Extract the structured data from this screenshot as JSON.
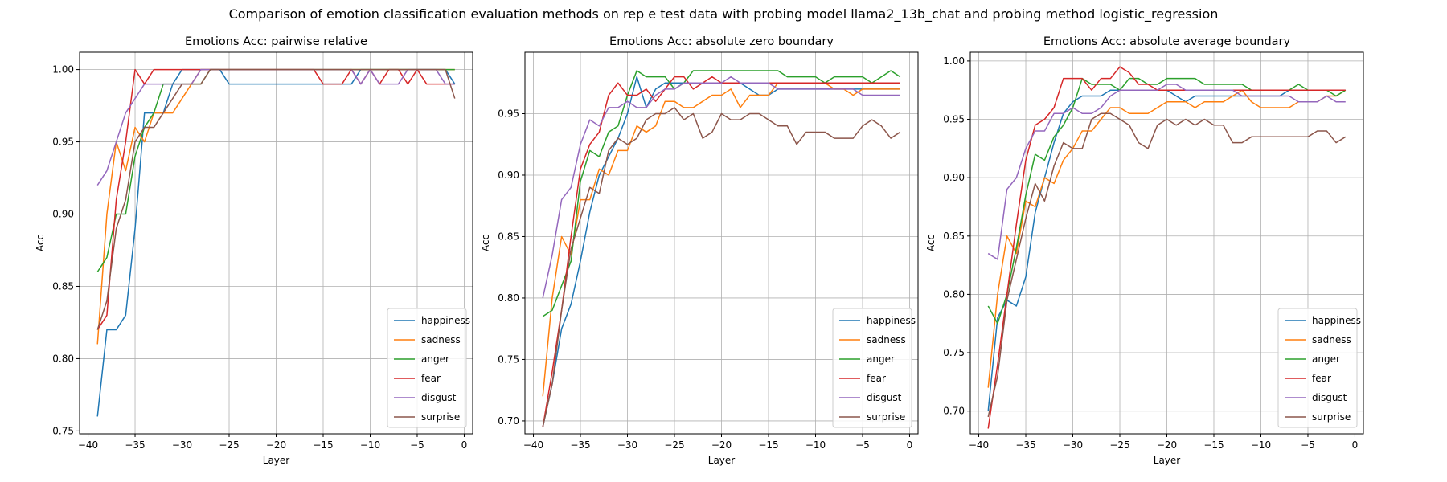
{
  "figure": {
    "suptitle": "Comparison of emotion classification evaluation methods on rep e test data with probing model llama2_13b_chat and probing method logistic_regression"
  },
  "legend_labels": [
    "happiness",
    "sadness",
    "anger",
    "fear",
    "disgust",
    "surprise"
  ],
  "chart_data": [
    {
      "type": "line",
      "title": "Emotions Acc: pairwise relative",
      "xlabel": "Layer",
      "ylabel": "Acc",
      "xlim": [
        -40.9,
        0.9
      ],
      "ylim": [
        0.748,
        1.012
      ],
      "xticks": [
        -40,
        -35,
        -30,
        -25,
        -20,
        -15,
        -10,
        -5,
        0
      ],
      "xtick_labels": [
        "−40",
        "−35",
        "−30",
        "−25",
        "−20",
        "−15",
        "−10",
        "−5",
        "0"
      ],
      "yticks": [
        0.75,
        0.8,
        0.85,
        0.9,
        0.95,
        1.0
      ],
      "ytick_labels": [
        "0.75",
        "0.80",
        "0.85",
        "0.90",
        "0.95",
        "1.00"
      ],
      "grid": true,
      "legend_position": "lower-right",
      "x_start": -39,
      "series": [
        {
          "name": "happiness",
          "color": "#1f77b4",
          "values": [
            0.76,
            0.82,
            0.82,
            0.83,
            0.89,
            0.97,
            0.97,
            0.97,
            0.99,
            1,
            1,
            1,
            1,
            1,
            0.99,
            0.99,
            0.99,
            0.99,
            0.99,
            0.99,
            0.99,
            0.99,
            0.99,
            0.99,
            0.99,
            0.99,
            0.99,
            0.99,
            1,
            1,
            1,
            1,
            1,
            1,
            1,
            1,
            1,
            1,
            0.99
          ]
        },
        {
          "name": "sadness",
          "color": "#ff7f0e",
          "values": [
            0.81,
            0.9,
            0.95,
            0.93,
            0.96,
            0.95,
            0.97,
            0.97,
            0.97,
            0.98,
            0.99,
            1,
            1,
            1,
            1,
            1,
            1,
            1,
            1,
            1,
            1,
            1,
            1,
            1,
            1,
            1,
            1,
            1,
            1,
            1,
            1,
            1,
            1,
            1,
            1,
            1,
            1,
            1,
            1
          ]
        },
        {
          "name": "anger",
          "color": "#2ca02c",
          "values": [
            0.86,
            0.87,
            0.9,
            0.9,
            0.94,
            0.96,
            0.97,
            0.99,
            0.99,
            0.99,
            0.99,
            0.99,
            1,
            1,
            1,
            1,
            1,
            1,
            1,
            1,
            1,
            1,
            1,
            1,
            1,
            1,
            1,
            1,
            1,
            1,
            1,
            1,
            1,
            1,
            1,
            1,
            1,
            1,
            1
          ]
        },
        {
          "name": "fear",
          "color": "#d62728",
          "values": [
            0.82,
            0.83,
            0.91,
            0.95,
            1,
            0.99,
            1,
            1,
            1,
            1,
            1,
            1,
            1,
            1,
            1,
            1,
            1,
            1,
            1,
            1,
            1,
            1,
            1,
            1,
            0.99,
            0.99,
            0.99,
            1,
            0.99,
            1,
            0.99,
            1,
            1,
            0.99,
            1,
            0.99,
            0.99,
            0.99,
            0.99
          ]
        },
        {
          "name": "disgust",
          "color": "#9467bd",
          "values": [
            0.92,
            0.93,
            0.95,
            0.97,
            0.98,
            0.99,
            0.99,
            0.99,
            0.99,
            0.99,
            0.99,
            1,
            1,
            1,
            1,
            1,
            1,
            1,
            1,
            1,
            1,
            1,
            1,
            1,
            1,
            1,
            1,
            1,
            0.99,
            1,
            0.99,
            0.99,
            0.99,
            1,
            1,
            1,
            1,
            0.99,
            0.99
          ]
        },
        {
          "name": "surprise",
          "color": "#8c564b",
          "values": [
            0.82,
            0.84,
            0.89,
            0.91,
            0.95,
            0.96,
            0.96,
            0.97,
            0.98,
            0.99,
            0.99,
            0.99,
            1,
            1,
            1,
            1,
            1,
            1,
            1,
            1,
            1,
            1,
            1,
            1,
            1,
            1,
            1,
            1,
            1,
            1,
            1,
            1,
            1,
            1,
            1,
            1,
            1,
            1,
            0.98
          ]
        }
      ]
    },
    {
      "type": "line",
      "title": "Emotions Acc: absolute zero boundary",
      "xlabel": "Layer",
      "ylabel": "Acc",
      "xlim": [
        -40.9,
        0.9
      ],
      "ylim": [
        0.6895,
        1.0
      ],
      "xticks": [
        -40,
        -35,
        -30,
        -25,
        -20,
        -15,
        -10,
        -5,
        0
      ],
      "xtick_labels": [
        "−40",
        "−35",
        "−30",
        "−25",
        "−20",
        "−15",
        "−10",
        "−5",
        "0"
      ],
      "yticks": [
        0.7,
        0.75,
        0.8,
        0.85,
        0.9,
        0.95
      ],
      "ytick_labels": [
        "0.70",
        "0.75",
        "0.80",
        "0.85",
        "0.90",
        "0.95"
      ],
      "grid": true,
      "legend_position": "lower-right",
      "x_start": -39,
      "series": [
        {
          "name": "happiness",
          "color": "#1f77b4",
          "values": [
            0.695,
            0.73,
            0.775,
            0.795,
            0.83,
            0.87,
            0.9,
            0.915,
            0.93,
            0.95,
            0.98,
            0.955,
            0.97,
            0.975,
            0.975,
            0.975,
            0.975,
            0.975,
            0.975,
            0.975,
            0.975,
            0.975,
            0.97,
            0.965,
            0.965,
            0.97,
            0.97,
            0.97,
            0.97,
            0.97,
            0.97,
            0.97,
            0.97,
            0.97,
            0.97,
            0.97,
            0.97,
            0.97,
            0.97
          ]
        },
        {
          "name": "sadness",
          "color": "#ff7f0e",
          "values": [
            0.72,
            0.8,
            0.85,
            0.835,
            0.88,
            0.88,
            0.905,
            0.9,
            0.92,
            0.92,
            0.94,
            0.935,
            0.94,
            0.96,
            0.96,
            0.955,
            0.955,
            0.96,
            0.965,
            0.965,
            0.97,
            0.955,
            0.965,
            0.965,
            0.965,
            0.975,
            0.975,
            0.975,
            0.975,
            0.975,
            0.975,
            0.97,
            0.97,
            0.965,
            0.97,
            0.97,
            0.97,
            0.97,
            0.97
          ]
        },
        {
          "name": "anger",
          "color": "#2ca02c",
          "values": [
            0.785,
            0.79,
            0.81,
            0.83,
            0.895,
            0.92,
            0.915,
            0.935,
            0.94,
            0.965,
            0.985,
            0.98,
            0.98,
            0.98,
            0.97,
            0.975,
            0.985,
            0.985,
            0.985,
            0.985,
            0.985,
            0.985,
            0.985,
            0.985,
            0.985,
            0.985,
            0.98,
            0.98,
            0.98,
            0.98,
            0.975,
            0.98,
            0.98,
            0.98,
            0.98,
            0.975,
            0.98,
            0.985,
            0.98
          ]
        },
        {
          "name": "fear",
          "color": "#d62728",
          "values": [
            0.695,
            0.74,
            0.79,
            0.85,
            0.905,
            0.925,
            0.935,
            0.965,
            0.975,
            0.965,
            0.965,
            0.97,
            0.96,
            0.97,
            0.98,
            0.98,
            0.97,
            0.975,
            0.98,
            0.975,
            0.975,
            0.975,
            0.975,
            0.975,
            0.975,
            0.975,
            0.975,
            0.975,
            0.975,
            0.975,
            0.975,
            0.975,
            0.975,
            0.975,
            0.975,
            0.975,
            0.975,
            0.975,
            0.975
          ]
        },
        {
          "name": "disgust",
          "color": "#9467bd",
          "values": [
            0.8,
            0.835,
            0.88,
            0.89,
            0.925,
            0.945,
            0.94,
            0.955,
            0.955,
            0.96,
            0.955,
            0.955,
            0.965,
            0.97,
            0.97,
            0.975,
            0.975,
            0.975,
            0.975,
            0.975,
            0.98,
            0.975,
            0.975,
            0.975,
            0.975,
            0.97,
            0.97,
            0.97,
            0.97,
            0.97,
            0.97,
            0.97,
            0.97,
            0.97,
            0.965,
            0.965,
            0.965,
            0.965,
            0.965
          ]
        },
        {
          "name": "surprise",
          "color": "#8c564b",
          "values": [
            0.695,
            0.73,
            0.79,
            0.84,
            0.865,
            0.89,
            0.885,
            0.92,
            0.93,
            0.925,
            0.93,
            0.945,
            0.95,
            0.95,
            0.955,
            0.945,
            0.95,
            0.93,
            0.935,
            0.95,
            0.945,
            0.945,
            0.95,
            0.95,
            0.945,
            0.94,
            0.94,
            0.925,
            0.935,
            0.935,
            0.935,
            0.93,
            0.93,
            0.93,
            0.94,
            0.945,
            0.94,
            0.93,
            0.935
          ]
        }
      ]
    },
    {
      "type": "line",
      "title": "Emotions Acc: absolute average boundary",
      "xlabel": "Layer",
      "ylabel": "Acc",
      "xlim": [
        -40.9,
        0.9
      ],
      "ylim": [
        0.6805,
        1.0075
      ],
      "xticks": [
        -40,
        -35,
        -30,
        -25,
        -20,
        -15,
        -10,
        -5,
        0
      ],
      "xtick_labels": [
        "−40",
        "−35",
        "−30",
        "−25",
        "−20",
        "−15",
        "−10",
        "−5",
        "0"
      ],
      "yticks": [
        0.7,
        0.75,
        0.8,
        0.85,
        0.9,
        0.95,
        1.0
      ],
      "ytick_labels": [
        "0.70",
        "0.75",
        "0.80",
        "0.85",
        "0.90",
        "0.95",
        "1.00"
      ],
      "grid": true,
      "legend_position": "lower-right",
      "x_start": -39,
      "series": [
        {
          "name": "happiness",
          "color": "#1f77b4",
          "values": [
            0.7,
            0.78,
            0.795,
            0.79,
            0.815,
            0.87,
            0.9,
            0.93,
            0.955,
            0.965,
            0.97,
            0.97,
            0.97,
            0.975,
            0.975,
            0.975,
            0.975,
            0.975,
            0.975,
            0.975,
            0.97,
            0.965,
            0.97,
            0.97,
            0.97,
            0.97,
            0.97,
            0.97,
            0.97,
            0.97,
            0.97,
            0.97,
            0.975,
            0.975,
            0.975,
            0.975,
            0.975,
            0.975,
            0.975
          ]
        },
        {
          "name": "sadness",
          "color": "#ff7f0e",
          "values": [
            0.72,
            0.8,
            0.85,
            0.835,
            0.88,
            0.875,
            0.9,
            0.895,
            0.915,
            0.925,
            0.94,
            0.94,
            0.95,
            0.96,
            0.96,
            0.955,
            0.955,
            0.955,
            0.96,
            0.965,
            0.965,
            0.965,
            0.96,
            0.965,
            0.965,
            0.965,
            0.97,
            0.975,
            0.965,
            0.96,
            0.96,
            0.96,
            0.96,
            0.965,
            0.965,
            0.965,
            0.97,
            0.97,
            0.975
          ]
        },
        {
          "name": "anger",
          "color": "#2ca02c",
          "values": [
            0.79,
            0.775,
            0.8,
            0.84,
            0.885,
            0.92,
            0.915,
            0.935,
            0.945,
            0.96,
            0.985,
            0.98,
            0.98,
            0.98,
            0.975,
            0.985,
            0.985,
            0.98,
            0.98,
            0.985,
            0.985,
            0.985,
            0.985,
            0.98,
            0.98,
            0.98,
            0.98,
            0.98,
            0.975,
            0.975,
            0.975,
            0.975,
            0.975,
            0.98,
            0.975,
            0.975,
            0.975,
            0.97,
            0.975
          ]
        },
        {
          "name": "fear",
          "color": "#d62728",
          "values": [
            0.685,
            0.74,
            0.8,
            0.86,
            0.915,
            0.945,
            0.95,
            0.96,
            0.985,
            0.985,
            0.985,
            0.975,
            0.985,
            0.985,
            0.995,
            0.99,
            0.98,
            0.98,
            0.975,
            0.975,
            0.975,
            0.975,
            0.975,
            0.975,
            0.975,
            0.975,
            0.975,
            0.975,
            0.975,
            0.975,
            0.975,
            0.975,
            0.975,
            0.975,
            0.975,
            0.975,
            0.975,
            0.975,
            0.975
          ]
        },
        {
          "name": "disgust",
          "color": "#9467bd",
          "values": [
            0.835,
            0.83,
            0.89,
            0.9,
            0.925,
            0.94,
            0.94,
            0.955,
            0.955,
            0.96,
            0.955,
            0.955,
            0.96,
            0.97,
            0.975,
            0.975,
            0.975,
            0.975,
            0.975,
            0.98,
            0.98,
            0.975,
            0.975,
            0.975,
            0.975,
            0.975,
            0.975,
            0.97,
            0.97,
            0.97,
            0.97,
            0.97,
            0.97,
            0.965,
            0.965,
            0.965,
            0.97,
            0.965,
            0.965
          ]
        },
        {
          "name": "surprise",
          "color": "#8c564b",
          "values": [
            0.695,
            0.73,
            0.795,
            0.83,
            0.865,
            0.895,
            0.88,
            0.91,
            0.93,
            0.925,
            0.925,
            0.95,
            0.955,
            0.955,
            0.95,
            0.945,
            0.93,
            0.925,
            0.945,
            0.95,
            0.945,
            0.95,
            0.945,
            0.95,
            0.945,
            0.945,
            0.93,
            0.93,
            0.935,
            0.935,
            0.935,
            0.935,
            0.935,
            0.935,
            0.935,
            0.94,
            0.94,
            0.93,
            0.935
          ]
        }
      ]
    }
  ]
}
